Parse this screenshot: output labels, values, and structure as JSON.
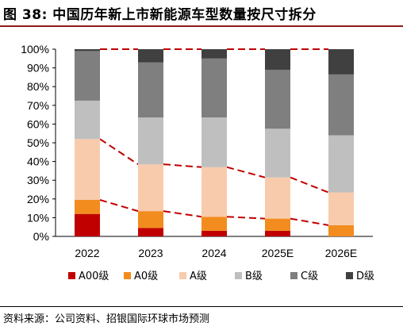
{
  "title": "图 38: 中国历年新上市新能源车型数量按尺寸拆分",
  "source": "资料来源：公司资料、招银国际环球市场预测",
  "chart_data": {
    "type": "bar",
    "stacked": true,
    "categories": [
      "2022",
      "2023",
      "2024",
      "2025E",
      "2026E"
    ],
    "series": [
      {
        "name": "A00级",
        "color": "#c00000",
        "values": [
          12,
          4.5,
          3,
          3,
          0
        ]
      },
      {
        "name": "A0级",
        "color": "#f28c1f",
        "values": [
          7.5,
          9,
          7.5,
          6.5,
          6
        ]
      },
      {
        "name": "A级",
        "color": "#f8cbad",
        "values": [
          32.5,
          25,
          26.5,
          22,
          17.5
        ]
      },
      {
        "name": "B级",
        "color": "#bfbfbf",
        "values": [
          20.5,
          25,
          26.5,
          26,
          30.5
        ]
      },
      {
        "name": "C级",
        "color": "#7f7f7f",
        "values": [
          26.5,
          29.5,
          31.5,
          31.5,
          32.5
        ]
      },
      {
        "name": "D级",
        "color": "#404040",
        "values": [
          1,
          7,
          5,
          11,
          13.5
        ]
      }
    ],
    "ylim": [
      0,
      100
    ],
    "yticks": [
      "0%",
      "10%",
      "20%",
      "30%",
      "40%",
      "50%",
      "60%",
      "70%",
      "80%",
      "90%",
      "100%"
    ],
    "connector_color": "#c00000",
    "legend_position": "bottom"
  }
}
